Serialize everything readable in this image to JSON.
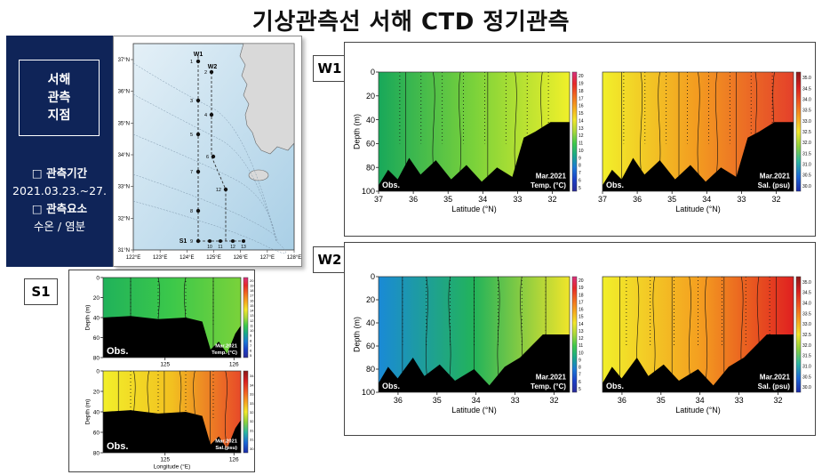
{
  "page": {
    "title": "기상관측선 서해 CTD 정기관측",
    "info": {
      "station_lines": [
        "서해",
        "관측",
        "지점"
      ],
      "period_heading": "□ 관측기간",
      "period_value": "2021.03.23.~27.",
      "elements_heading": "□ 관측요소",
      "elements_value": "수온 / 염분"
    }
  },
  "map": {
    "lon_ticks": [
      "122°E",
      "123°E",
      "124°E",
      "125°E",
      "126°E",
      "127°E",
      "128°E"
    ],
    "lat_ticks": [
      "37°N",
      "36°N",
      "35°N",
      "34°N",
      "33°N",
      "32°N",
      "31°N"
    ],
    "line_labels": [
      "W1",
      "W2",
      "S1"
    ],
    "w1_station_numbers": [
      "1",
      "3",
      "5",
      "7",
      "8",
      "9"
    ],
    "w2_station_numbers": [
      "2",
      "4",
      "6",
      "12"
    ],
    "s1_station_numbers": [
      "10",
      "11",
      "12",
      "13"
    ],
    "colors": {
      "sea_light": "#e4f0f7",
      "sea_deep": "#a9cfe6",
      "land": "#d9d9d9"
    }
  },
  "panel_labels": {
    "w1": "W1",
    "w2": "W2",
    "s1": "S1"
  },
  "chart_data": [
    {
      "id": "w1-temp",
      "type": "heatmap",
      "xlabel": "Latitude (°N)",
      "ylabel": "Depth (m)",
      "x_ticks": [
        "37",
        "36",
        "35",
        "34",
        "33",
        "32"
      ],
      "y_ticks": [
        "0",
        "20",
        "40",
        "60",
        "80",
        "100"
      ],
      "xlim": [
        37,
        31.5
      ],
      "ylim": [
        0,
        100
      ],
      "corner_left": "Obs.",
      "corner_right": [
        "Mar.2021",
        "Temp. (°C)"
      ],
      "colorbar": [
        "20",
        "19",
        "18",
        "17",
        "16",
        "15",
        "14",
        "13",
        "12",
        "11",
        "10",
        "9",
        "8",
        "7",
        "6",
        "5"
      ],
      "colors": [
        "#18a85a",
        "#7bd23a",
        "#f0f02a"
      ]
    },
    {
      "id": "w1-sal",
      "type": "heatmap",
      "xlabel": "Latitude (°N)",
      "ylabel": "",
      "x_ticks": [
        "37",
        "36",
        "35",
        "34",
        "33",
        "32"
      ],
      "y_ticks": [],
      "xlim": [
        37,
        31.5
      ],
      "ylim": [
        0,
        100
      ],
      "corner_left": "Obs.",
      "corner_right": [
        "Mar.2021",
        "Sal. (psu)"
      ],
      "colorbar": [
        "35.0",
        "34.5",
        "34.0",
        "33.5",
        "33.0",
        "32.5",
        "32.0",
        "31.5",
        "31.0",
        "30.5",
        "30.0"
      ],
      "colors": [
        "#f2ef2a",
        "#f39a20",
        "#e4402a"
      ]
    },
    {
      "id": "w2-temp",
      "type": "heatmap",
      "xlabel": "Latitude (°N)",
      "ylabel": "Depth (m)",
      "x_ticks": [
        "36",
        "35",
        "34",
        "33",
        "32"
      ],
      "y_ticks": [
        "0",
        "20",
        "40",
        "60",
        "80",
        "100"
      ],
      "xlim": [
        36.5,
        31.6
      ],
      "ylim": [
        0,
        100
      ],
      "corner_left": "Obs.",
      "corner_right": [
        "Mar.2021",
        "Temp. (°C)"
      ],
      "colorbar": [
        "20",
        "19",
        "18",
        "17",
        "16",
        "15",
        "14",
        "13",
        "12",
        "11",
        "10",
        "9",
        "8",
        "7",
        "6",
        "5"
      ],
      "colors": [
        "#1a8ad6",
        "#22b35a",
        "#f0e52a"
      ]
    },
    {
      "id": "w2-sal",
      "type": "heatmap",
      "xlabel": "Latitude (°N)",
      "ylabel": "",
      "x_ticks": [
        "36",
        "35",
        "34",
        "33",
        "32"
      ],
      "y_ticks": [],
      "xlim": [
        36.5,
        31.6
      ],
      "ylim": [
        0,
        100
      ],
      "corner_left": "Obs.",
      "corner_right": [
        "Mar.2021",
        "Sal. (psu)"
      ],
      "colorbar": [
        "35.0",
        "34.5",
        "34.0",
        "33.5",
        "33.0",
        "32.5",
        "32.0",
        "31.5",
        "31.0",
        "30.5",
        "30.0"
      ],
      "colors": [
        "#f2ef2a",
        "#f4a020",
        "#e02020"
      ]
    },
    {
      "id": "s1-temp",
      "type": "heatmap",
      "xlabel": "",
      "ylabel": "Depth (m)",
      "x_ticks": [
        "125",
        "126"
      ],
      "y_ticks": [
        "0",
        "20",
        "40",
        "60",
        "80"
      ],
      "xlim": [
        124.1,
        126.1
      ],
      "ylim": [
        0,
        80
      ],
      "corner_left": "Obs.",
      "corner_right": [
        "Mar.2021",
        "Temp. (°C)"
      ],
      "colorbar": [
        "20",
        "19",
        "18",
        "17",
        "16",
        "15",
        "14",
        "13",
        "12",
        "11",
        "10",
        "9",
        "8",
        "7",
        "6",
        "5"
      ],
      "colors": [
        "#20b25a",
        "#3cc84a",
        "#7ad23a"
      ]
    },
    {
      "id": "s1-sal",
      "type": "heatmap",
      "xlabel": "Longitude (°E)",
      "ylabel": "Depth (m)",
      "x_ticks": [
        "125",
        "126"
      ],
      "y_ticks": [
        "0",
        "20",
        "40",
        "60",
        "80"
      ],
      "xlim": [
        124.1,
        126.1
      ],
      "ylim": [
        0,
        80
      ],
      "corner_left": "Obs.",
      "corner_right": [
        "Mar.2021",
        "Sal.(psu)"
      ],
      "colorbar": [
        "34.5",
        "34.0",
        "33.5",
        "33.0",
        "32.5",
        "32.0",
        "31.5",
        "31.0",
        "30.5"
      ],
      "colors": [
        "#f2ef2a",
        "#f2c020",
        "#e84a28"
      ]
    }
  ]
}
